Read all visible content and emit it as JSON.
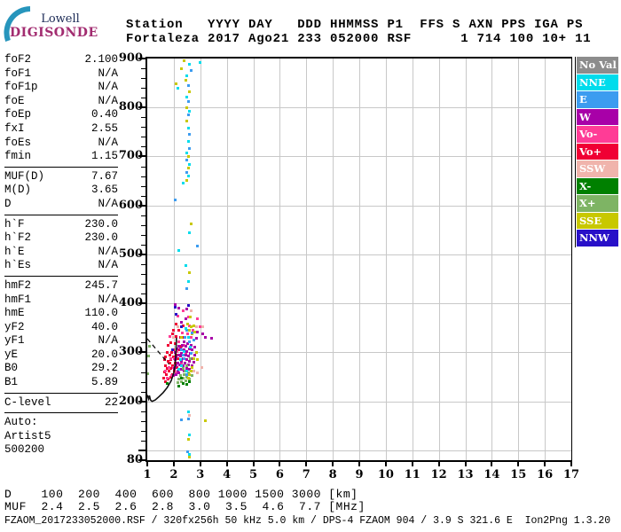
{
  "logo": {
    "top": "Lowell",
    "bottom": "DIGISONDE"
  },
  "header": {
    "line1": "Station   YYYY DAY   DDD HHMMSS P1  FFS S AXN PPS IGA PS",
    "line2": "Fortaleza 2017 Ago21 233 052000 RSF      1 714 100 10+ 11"
  },
  "params": {
    "groups": [
      {
        "rows": [
          [
            "foF2",
            "2.100"
          ],
          [
            "foF1",
            "N/A"
          ],
          [
            "foF1p",
            "N/A"
          ],
          [
            "foE",
            "N/A"
          ],
          [
            "foEp",
            "0.40"
          ],
          [
            "fxI",
            "2.55"
          ],
          [
            "foEs",
            "N/A"
          ],
          [
            "fmin",
            "1.15"
          ]
        ]
      },
      {
        "rows": [
          [
            "MUF(D)",
            "7.67"
          ],
          [
            "M(D)",
            "3.65"
          ],
          [
            "D",
            "N/A"
          ]
        ]
      },
      {
        "rows": [
          [
            "h`F",
            "230.0"
          ],
          [
            "h`F2",
            "230.0"
          ],
          [
            "h`E",
            "N/A"
          ],
          [
            "h`Es",
            "N/A"
          ]
        ]
      },
      {
        "rows": [
          [
            "hmF2",
            "245.7"
          ],
          [
            "hmF1",
            "N/A"
          ],
          [
            "hmE",
            "110.0"
          ],
          [
            "yF2",
            "40.0"
          ],
          [
            "yF1",
            "N/A"
          ],
          [
            "yE",
            "20.0"
          ],
          [
            "B0",
            "29.2"
          ],
          [
            "B1",
            "5.89"
          ]
        ]
      },
      {
        "rows": [
          [
            "C-level",
            "22"
          ]
        ]
      }
    ],
    "footer": [
      "Auto:",
      "Artist5",
      "500200"
    ]
  },
  "legend": {
    "items": [
      {
        "label": "No Val",
        "key": "noval",
        "color": "#8C8C8C"
      },
      {
        "label": "NNE",
        "key": "nne",
        "color": "#00DCEC"
      },
      {
        "label": "E",
        "key": "e",
        "color": "#3C9CF0"
      },
      {
        "label": "W",
        "key": "w",
        "color": "#A800A8"
      },
      {
        "label": "Vo-",
        "key": "vo-",
        "color": "#FF3C96"
      },
      {
        "label": "Vo+",
        "key": "vo+",
        "color": "#F00034"
      },
      {
        "label": "SSW",
        "key": "ssw",
        "color": "#F0B4AC"
      },
      {
        "label": "X-",
        "key": "x-",
        "color": "#008000"
      },
      {
        "label": "X+",
        "key": "x+",
        "color": "#7EB464"
      },
      {
        "label": "SSE",
        "key": "sse",
        "color": "#C8C800"
      },
      {
        "label": "NNW",
        "key": "nnw",
        "color": "#2810C8"
      }
    ]
  },
  "chart_data": {
    "type": "scatter",
    "title": "Fortaleza ionogram 2017 Ago21 233 052000",
    "xlabel": "[MHz]",
    "ylabel": "[km]",
    "xlim": [
      1,
      17
    ],
    "ylim": [
      80,
      900
    ],
    "x_ticks": [
      1,
      2,
      3,
      4,
      5,
      6,
      7,
      8,
      9,
      10,
      11,
      12,
      13,
      14,
      15,
      16,
      17
    ],
    "y_major_ticks": [
      80,
      100,
      200,
      300,
      400,
      500,
      600,
      700,
      800,
      900
    ],
    "y_label_ticks": [
      900,
      800,
      700,
      600,
      500,
      400,
      300,
      200,
      80
    ],
    "y_grid": [
      100,
      200,
      300,
      400,
      500,
      600,
      700,
      800
    ],
    "grid": true,
    "legend_entries": [
      "No Val",
      "NNE",
      "E",
      "W",
      "Vo-",
      "Vo+",
      "SSW",
      "X-",
      "X+",
      "SSE",
      "NNW"
    ],
    "point_colors": {
      "noval": "#8C8C8C",
      "nne": "#00DCEC",
      "e": "#3C9CF0",
      "w": "#A800A8",
      "vo-": "#FF3C96",
      "vo+": "#F00034",
      "ssw": "#F0B4AC",
      "x-": "#008000",
      "x+": "#7EB464",
      "sse": "#C8C800",
      "nnw": "#2810C8"
    },
    "profile_curve": [
      [
        1.0,
        213
      ],
      [
        1.05,
        205
      ],
      [
        1.08,
        212
      ],
      [
        1.12,
        203
      ],
      [
        1.18,
        200
      ],
      [
        1.3,
        203
      ],
      [
        1.45,
        210
      ],
      [
        1.6,
        218
      ],
      [
        1.75,
        228
      ],
      [
        1.9,
        242
      ],
      [
        2.0,
        258
      ],
      [
        2.05,
        275
      ],
      [
        2.08,
        300
      ],
      [
        2.1,
        330
      ]
    ],
    "dashed_segment": [
      [
        1.0,
        328
      ],
      [
        1.82,
        276
      ]
    ],
    "points": [
      [
        1.62,
        248,
        "vo+"
      ],
      [
        1.65,
        260,
        "vo+"
      ],
      [
        1.68,
        273,
        "vo+"
      ],
      [
        1.7,
        240,
        "vo+"
      ],
      [
        1.72,
        255,
        "vo+"
      ],
      [
        1.75,
        268,
        "vo+"
      ],
      [
        1.78,
        282,
        "vo+"
      ],
      [
        1.8,
        245,
        "vo+"
      ],
      [
        1.82,
        262,
        "vo+"
      ],
      [
        1.85,
        278,
        "vo+"
      ],
      [
        1.85,
        295,
        "vo+"
      ],
      [
        1.88,
        250,
        "vo+"
      ],
      [
        1.9,
        268,
        "vo+"
      ],
      [
        1.9,
        285,
        "vo+"
      ],
      [
        1.92,
        300,
        "vo+"
      ],
      [
        1.95,
        255,
        "vo+"
      ],
      [
        1.95,
        272,
        "vo+"
      ],
      [
        1.98,
        290,
        "vo+"
      ],
      [
        2.0,
        305,
        "vo+"
      ],
      [
        2.02,
        262,
        "vo+"
      ],
      [
        2.05,
        278,
        "vo+"
      ],
      [
        2.05,
        318,
        "vo+"
      ],
      [
        2.08,
        295,
        "vo+"
      ],
      [
        2.1,
        332,
        "vo+"
      ],
      [
        2.12,
        270,
        "vo+"
      ],
      [
        2.15,
        288,
        "vo+"
      ],
      [
        2.18,
        305,
        "vo+"
      ],
      [
        2.2,
        345,
        "vo+"
      ],
      [
        2.25,
        330,
        "vo+"
      ],
      [
        2.3,
        312,
        "vo+"
      ],
      [
        1.75,
        300,
        "vo+"
      ],
      [
        1.8,
        315,
        "vo+"
      ],
      [
        1.7,
        290,
        "vo+"
      ],
      [
        1.65,
        285,
        "vo+"
      ],
      [
        2.4,
        330,
        "vo+"
      ],
      [
        2.35,
        355,
        "vo+"
      ],
      [
        2.1,
        358,
        "vo+"
      ],
      [
        2.0,
        345,
        "vo+"
      ],
      [
        1.9,
        320,
        "vo+"
      ],
      [
        1.95,
        338,
        "vo+"
      ],
      [
        1.7,
        262,
        "vo-"
      ],
      [
        1.75,
        248,
        "vo-"
      ],
      [
        1.82,
        270,
        "vo-"
      ],
      [
        1.88,
        288,
        "vo-"
      ],
      [
        1.92,
        252,
        "vo-"
      ],
      [
        1.98,
        270,
        "vo-"
      ],
      [
        2.02,
        288,
        "vo-"
      ],
      [
        2.08,
        258,
        "vo-"
      ],
      [
        2.12,
        302,
        "vo-"
      ],
      [
        2.18,
        322,
        "vo-"
      ],
      [
        2.22,
        295,
        "vo-"
      ],
      [
        2.28,
        278,
        "vo-"
      ],
      [
        2.32,
        340,
        "vo-"
      ],
      [
        2.38,
        315,
        "vo-"
      ],
      [
        2.45,
        298,
        "vo-"
      ],
      [
        2.52,
        338,
        "vo-"
      ],
      [
        2.6,
        355,
        "vo-"
      ],
      [
        2.65,
        330,
        "vo-"
      ],
      [
        2.72,
        345,
        "vo-"
      ],
      [
        3.0,
        352,
        "vo-"
      ],
      [
        2.9,
        368,
        "vo-"
      ],
      [
        2.55,
        372,
        "vo-"
      ],
      [
        2.35,
        385,
        "vo-"
      ],
      [
        2.15,
        375,
        "vo-"
      ],
      [
        1.85,
        332,
        "vo-"
      ],
      [
        2.0,
        252,
        "w"
      ],
      [
        2.02,
        268,
        "w"
      ],
      [
        2.05,
        285,
        "w"
      ],
      [
        2.05,
        300,
        "w"
      ],
      [
        2.08,
        272,
        "w"
      ],
      [
        2.1,
        255,
        "w"
      ],
      [
        2.1,
        290,
        "w"
      ],
      [
        2.12,
        308,
        "w"
      ],
      [
        2.15,
        262,
        "w"
      ],
      [
        2.15,
        278,
        "w"
      ],
      [
        2.18,
        295,
        "w"
      ],
      [
        2.2,
        312,
        "w"
      ],
      [
        2.2,
        258,
        "w"
      ],
      [
        2.22,
        275,
        "w"
      ],
      [
        2.25,
        292,
        "w"
      ],
      [
        2.25,
        308,
        "w"
      ],
      [
        2.28,
        265,
        "w"
      ],
      [
        2.3,
        282,
        "w"
      ],
      [
        2.3,
        298,
        "w"
      ],
      [
        2.32,
        315,
        "w"
      ],
      [
        2.35,
        272,
        "w"
      ],
      [
        2.35,
        288,
        "w"
      ],
      [
        2.38,
        305,
        "w"
      ],
      [
        2.4,
        262,
        "w"
      ],
      [
        2.4,
        322,
        "w"
      ],
      [
        2.42,
        278,
        "w"
      ],
      [
        2.45,
        295,
        "w"
      ],
      [
        2.45,
        312,
        "w"
      ],
      [
        2.48,
        268,
        "w"
      ],
      [
        2.5,
        285,
        "w"
      ],
      [
        2.5,
        302,
        "w"
      ],
      [
        2.52,
        318,
        "w"
      ],
      [
        2.55,
        275,
        "w"
      ],
      [
        2.55,
        292,
        "w"
      ],
      [
        2.58,
        308,
        "w"
      ],
      [
        2.6,
        265,
        "w"
      ],
      [
        2.6,
        282,
        "w"
      ],
      [
        2.62,
        298,
        "w"
      ],
      [
        2.65,
        315,
        "w"
      ],
      [
        2.68,
        272,
        "w"
      ],
      [
        2.7,
        288,
        "w"
      ],
      [
        2.7,
        305,
        "w"
      ],
      [
        2.72,
        262,
        "w"
      ],
      [
        2.75,
        280,
        "w"
      ],
      [
        2.78,
        295,
        "w"
      ],
      [
        2.8,
        310,
        "w"
      ],
      [
        2.85,
        328,
        "w"
      ],
      [
        2.9,
        342,
        "w"
      ],
      [
        3.1,
        338,
        "w"
      ],
      [
        3.2,
        330,
        "w"
      ],
      [
        3.42,
        328,
        "w"
      ],
      [
        2.3,
        362,
        "w"
      ],
      [
        2.45,
        368,
        "w"
      ],
      [
        2.2,
        390,
        "w"
      ],
      [
        2.05,
        398,
        "w"
      ],
      [
        2.5,
        388,
        "w"
      ],
      [
        2.15,
        238,
        "x+"
      ],
      [
        2.2,
        245,
        "x+"
      ],
      [
        2.25,
        252,
        "x+"
      ],
      [
        2.3,
        240,
        "x+"
      ],
      [
        2.35,
        248,
        "x+"
      ],
      [
        2.4,
        255,
        "x+"
      ],
      [
        2.45,
        242,
        "x+"
      ],
      [
        2.5,
        250,
        "x+"
      ],
      [
        2.55,
        258,
        "x+"
      ],
      [
        2.6,
        246,
        "x+"
      ],
      [
        2.42,
        262,
        "x+"
      ],
      [
        2.35,
        268,
        "x+"
      ],
      [
        2.5,
        272,
        "x+"
      ],
      [
        2.62,
        288,
        "x+"
      ],
      [
        1.03,
        256,
        "x+"
      ],
      [
        1.06,
        292,
        "x+"
      ],
      [
        1.1,
        312,
        "x+"
      ],
      [
        2.7,
        252,
        "x+"
      ],
      [
        2.2,
        232,
        "x-"
      ],
      [
        2.35,
        236,
        "x-"
      ],
      [
        2.5,
        234,
        "x-"
      ],
      [
        2.28,
        248,
        "x-"
      ],
      [
        2.6,
        240,
        "x-"
      ],
      [
        1.75,
        236,
        "x-"
      ],
      [
        2.55,
        248,
        "sse"
      ],
      [
        2.6,
        255,
        "sse"
      ],
      [
        2.65,
        262,
        "sse"
      ],
      [
        2.7,
        270,
        "sse"
      ],
      [
        2.75,
        288,
        "sse"
      ],
      [
        2.6,
        345,
        "sse"
      ],
      [
        2.65,
        352,
        "sse"
      ],
      [
        2.7,
        338,
        "sse"
      ],
      [
        2.75,
        355,
        "sse"
      ],
      [
        2.8,
        342,
        "sse"
      ],
      [
        2.62,
        372,
        "sse"
      ],
      [
        2.52,
        358,
        "sse"
      ],
      [
        2.3,
        330,
        "sse"
      ],
      [
        2.85,
        300,
        "sse"
      ],
      [
        2.9,
        285,
        "sse"
      ],
      [
        2.3,
        305,
        "e"
      ],
      [
        2.42,
        330,
        "e"
      ],
      [
        2.5,
        345,
        "e"
      ],
      [
        2.58,
        322,
        "e"
      ],
      [
        2.35,
        295,
        "e"
      ],
      [
        2.65,
        298,
        "e"
      ],
      [
        2.4,
        288,
        "e"
      ],
      [
        2.48,
        255,
        "e"
      ],
      [
        2.68,
        340,
        "e"
      ],
      [
        2.75,
        325,
        "e"
      ],
      [
        2.25,
        285,
        "nne"
      ],
      [
        2.4,
        302,
        "nne"
      ],
      [
        2.55,
        330,
        "nne"
      ],
      [
        2.3,
        272,
        "nne"
      ],
      [
        2.62,
        310,
        "nne"
      ],
      [
        2.45,
        348,
        "nne"
      ],
      [
        2.2,
        265,
        "nne"
      ],
      [
        2.5,
        262,
        "nne"
      ],
      [
        2.85,
        352,
        "ssw"
      ],
      [
        3.05,
        270,
        "ssw"
      ],
      [
        2.9,
        258,
        "ssw"
      ],
      [
        2.75,
        262,
        "ssw"
      ],
      [
        2.15,
        352,
        "ssw"
      ],
      [
        2.0,
        330,
        "ssw"
      ],
      [
        3.1,
        352,
        "ssw"
      ],
      [
        2.65,
        385,
        "ssw"
      ],
      [
        2.05,
        392,
        "nnw"
      ],
      [
        2.1,
        378,
        "nnw"
      ],
      [
        1.95,
        305,
        "nnw"
      ],
      [
        2.55,
        395,
        "nnw"
      ],
      [
        2.3,
        352,
        "nnw"
      ],
      [
        2.5,
        430,
        "e"
      ],
      [
        2.55,
        445,
        "nne"
      ],
      [
        2.6,
        462,
        "sse"
      ],
      [
        2.45,
        478,
        "nne"
      ],
      [
        2.2,
        508,
        "nne"
      ],
      [
        2.9,
        518,
        "e"
      ],
      [
        2.6,
        545,
        "nne"
      ],
      [
        2.65,
        562,
        "sse"
      ],
      [
        2.05,
        612,
        "e"
      ],
      [
        2.35,
        645,
        "nne"
      ],
      [
        2.5,
        652,
        "sse"
      ],
      [
        2.55,
        660,
        "nne"
      ],
      [
        2.5,
        668,
        "e"
      ],
      [
        2.55,
        676,
        "sse"
      ],
      [
        2.6,
        684,
        "nne"
      ],
      [
        2.5,
        692,
        "e"
      ],
      [
        2.55,
        700,
        "sse"
      ],
      [
        2.5,
        708,
        "nne"
      ],
      [
        2.6,
        716,
        "e"
      ],
      [
        2.55,
        730,
        "nne"
      ],
      [
        2.6,
        745,
        "e"
      ],
      [
        2.55,
        758,
        "nne"
      ],
      [
        2.5,
        772,
        "sse"
      ],
      [
        2.55,
        785,
        "e"
      ],
      [
        2.6,
        792,
        "nne"
      ],
      [
        2.5,
        800,
        "sse"
      ],
      [
        2.55,
        812,
        "e"
      ],
      [
        2.5,
        822,
        "nne"
      ],
      [
        2.6,
        832,
        "sse"
      ],
      [
        2.55,
        845,
        "e"
      ],
      [
        2.45,
        855,
        "sse"
      ],
      [
        2.5,
        865,
        "nne"
      ],
      [
        2.65,
        875,
        "e"
      ],
      [
        2.3,
        880,
        "sse"
      ],
      [
        2.6,
        888,
        "nne"
      ],
      [
        2.4,
        895,
        "sse"
      ],
      [
        3.0,
        892,
        "nne"
      ],
      [
        2.1,
        848,
        "sse"
      ],
      [
        2.15,
        840,
        "nne"
      ],
      [
        2.55,
        178,
        "nne"
      ],
      [
        2.6,
        172,
        "ssw"
      ],
      [
        2.55,
        165,
        "e"
      ],
      [
        2.3,
        162,
        "e"
      ],
      [
        3.2,
        160,
        "sse"
      ],
      [
        2.6,
        132,
        "nne"
      ],
      [
        2.55,
        122,
        "sse"
      ],
      [
        2.58,
        92,
        "nne"
      ],
      [
        2.6,
        86,
        "sse"
      ],
      [
        2.52,
        98,
        "e"
      ]
    ]
  },
  "footer": {
    "d_row": "D    100  200  400  600  800 1000 1500 3000 [km]",
    "muf_row": "MUF  2.4  2.5  2.6  2.8  3.0  3.5  4.6  7.7 [MHz]",
    "file_row": "FZAOM_2017233052000.RSF / 320fx256h 50 kHz 5.0 km / DPS-4 FZAOM 904 / 3.9 S 321.6 E  Ion2Png 1.3.20"
  }
}
